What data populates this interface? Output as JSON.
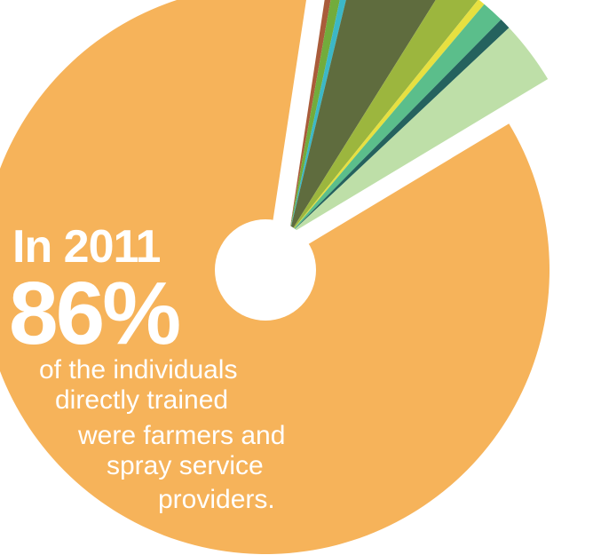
{
  "chart_data": {
    "type": "pie",
    "title": "",
    "center_hole": true,
    "slices": [
      {
        "label": "",
        "percent": 86,
        "color": "#F6B35A",
        "exploded": false
      },
      {
        "label": "",
        "percent": 0.4,
        "color": "#A95C3A",
        "exploded": true
      },
      {
        "label": "",
        "percent": 0.6,
        "color": "#72AC3C",
        "exploded": true
      },
      {
        "label": "",
        "percent": 0.4,
        "color": "#3CB7C7",
        "exploded": true
      },
      {
        "label": "",
        "percent": 5.1,
        "color": "#5F6C3E",
        "exploded": true
      },
      {
        "label": "",
        "percent": 1.9,
        "color": "#9CB63E",
        "exploded": true
      },
      {
        "label": "",
        "percent": 0.4,
        "color": "#E7E040",
        "exploded": true
      },
      {
        "label": "",
        "percent": 1.2,
        "color": "#5BBE8B",
        "exploded": true
      },
      {
        "label": "",
        "percent": 0.6,
        "color": "#25625E",
        "exploded": true
      },
      {
        "label": "",
        "percent": 3.4,
        "color": "#BEDFA8",
        "exploded": true
      }
    ]
  },
  "annotation": {
    "year_line": "In 2011",
    "big_percent": "86%",
    "description_lines": [
      "of the individuals",
      "directly trained",
      "were farmers and",
      "spray service",
      "providers."
    ]
  },
  "colors": {
    "background": "#ffffff",
    "text": "#ffffff"
  }
}
